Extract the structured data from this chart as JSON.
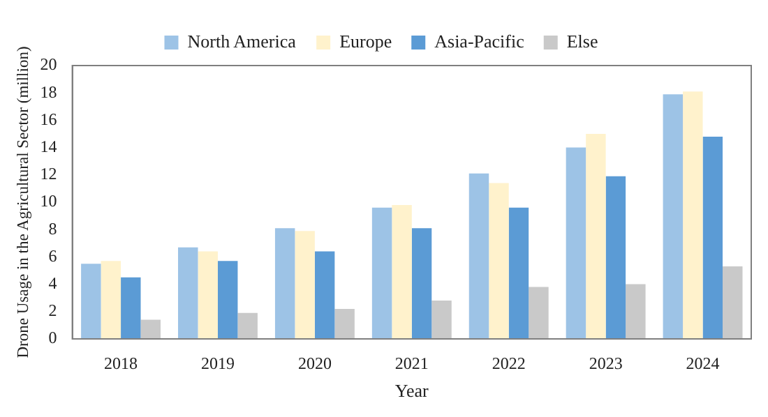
{
  "chart_data": {
    "type": "bar",
    "xlabel": "Year",
    "ylabel": "Drone Usage in the Agricultural Sector (million)",
    "categories": [
      "2018",
      "2019",
      "2020",
      "2021",
      "2022",
      "2023",
      "2024"
    ],
    "series": [
      {
        "name": "North America",
        "color": "#9dc3e6",
        "values": [
          5.5,
          6.7,
          8.1,
          9.6,
          12.1,
          14.0,
          17.9
        ]
      },
      {
        "name": "Europe",
        "color": "#fff2cc",
        "values": [
          5.7,
          6.4,
          7.9,
          9.8,
          11.4,
          15.0,
          18.1
        ]
      },
      {
        "name": "Asia-Pacific",
        "color": "#5b9bd5",
        "values": [
          4.5,
          5.7,
          6.4,
          8.1,
          9.6,
          11.9,
          14.8
        ]
      },
      {
        "name": "Else",
        "color": "#c9c9c9",
        "values": [
          1.4,
          1.9,
          2.2,
          2.8,
          3.8,
          4.0,
          5.3
        ]
      }
    ],
    "ylim": [
      0,
      20
    ],
    "yticks": [
      0,
      2,
      4,
      6,
      8,
      10,
      12,
      14,
      16,
      18,
      20
    ],
    "grid": false,
    "legend": "top"
  }
}
